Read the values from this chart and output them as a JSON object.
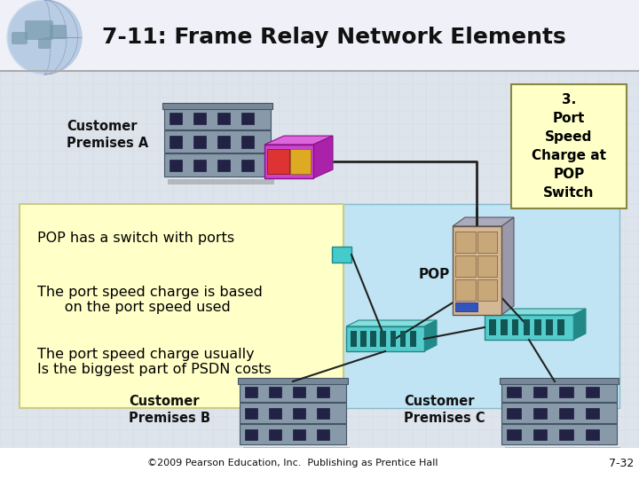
{
  "title": "7-11: Frame Relay Network Elements",
  "title_fontsize": 18,
  "footer": "©2009 Pearson Education, Inc.  Publishing as Prentice Hall",
  "page_num": "7-32",
  "bg_main": "#d8dce0",
  "bg_header": "#f0f0f8",
  "callout_text": "3.\nPort\nSpeed\nCharge at\nPOP\nSwitch",
  "callout_bg": "#ffffc8",
  "callout_border": "#888844",
  "info_line1": "POP has a switch with ports",
  "info_line2": "The port speed charge is based\n      on the port speed used",
  "info_line3": "The port speed charge usually\nIs the biggest part of PSDN costs",
  "info_bg": "#ffffc8",
  "cloud_bg": "#c0e4f4",
  "cloud_border": "#88bbcc",
  "building_wall": "#8899aa",
  "building_dark": "#445566",
  "building_window": "#222244",
  "building_roof": "#778899",
  "pop_front": "#d4b896",
  "pop_side": "#888899",
  "pop_blue": "#3355bb",
  "switch_top": "#55cccc",
  "switch_front": "#33aaaa",
  "switch_side": "#228888",
  "switch_port": "#115555",
  "cpe_main": "#cc44cc",
  "cpe_side": "#993399",
  "cpe_face1": "#dd3333",
  "cpe_face2": "#ddaa22"
}
